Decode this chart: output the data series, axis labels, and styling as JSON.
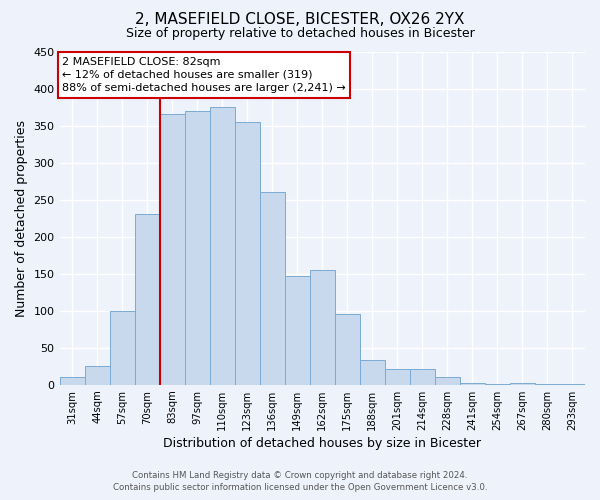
{
  "title": "2, MASEFIELD CLOSE, BICESTER, OX26 2YX",
  "subtitle": "Size of property relative to detached houses in Bicester",
  "xlabel": "Distribution of detached houses by size in Bicester",
  "ylabel": "Number of detached properties",
  "bar_color": "#c8d9ee",
  "bar_edge_color": "#7aabd4",
  "bg_color": "#eef2fb",
  "grid_color": "#ffffff",
  "categories": [
    "31sqm",
    "44sqm",
    "57sqm",
    "70sqm",
    "83sqm",
    "97sqm",
    "110sqm",
    "123sqm",
    "136sqm",
    "149sqm",
    "162sqm",
    "175sqm",
    "188sqm",
    "201sqm",
    "214sqm",
    "228sqm",
    "241sqm",
    "254sqm",
    "267sqm",
    "280sqm",
    "293sqm"
  ],
  "values": [
    10,
    25,
    100,
    230,
    365,
    370,
    375,
    355,
    260,
    147,
    155,
    95,
    33,
    21,
    21,
    10,
    3,
    1,
    2,
    1,
    1
  ],
  "ylim": [
    0,
    450
  ],
  "yticks": [
    0,
    50,
    100,
    150,
    200,
    250,
    300,
    350,
    400,
    450
  ],
  "vline_index": 4,
  "vline_color": "#cc0000",
  "annot_line1": "2 MASEFIELD CLOSE: 82sqm",
  "annot_line2": "← 12% of detached houses are smaller (319)",
  "annot_line3": "88% of semi-detached houses are larger (2,241) →",
  "annotation_box_color": "#ffffff",
  "annotation_box_edge": "#cc0000",
  "footer_line1": "Contains HM Land Registry data © Crown copyright and database right 2024.",
  "footer_line2": "Contains public sector information licensed under the Open Government Licence v3.0."
}
